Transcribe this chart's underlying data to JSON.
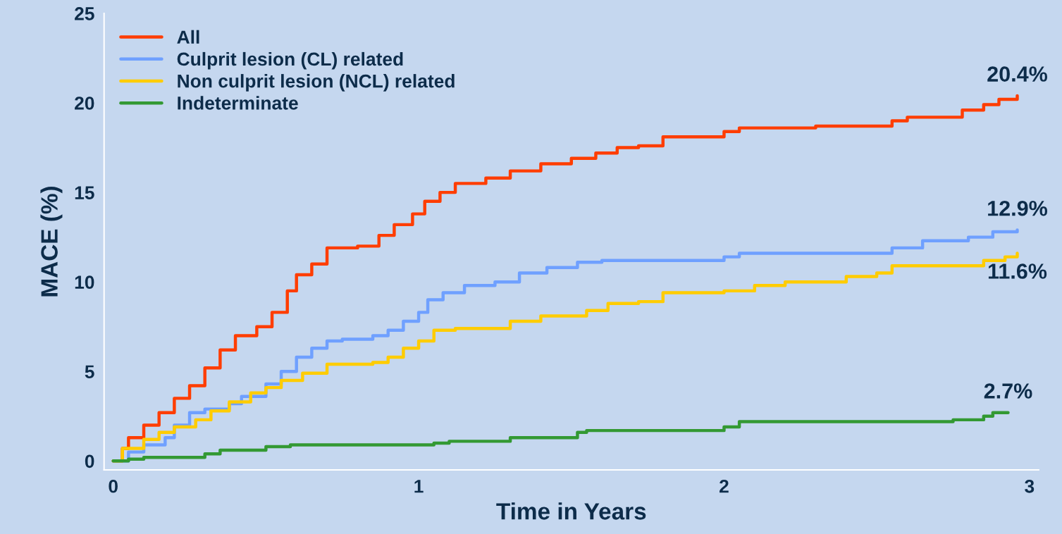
{
  "chart_data": {
    "type": "step",
    "xlabel": "Time in Years",
    "ylabel": "MACE (%)",
    "xlim": [
      -0.03,
      3.03
    ],
    "ylim": [
      -0.5,
      25
    ],
    "xticks": [
      0,
      1,
      2,
      3
    ],
    "yticks": [
      0,
      5,
      10,
      15,
      20,
      25
    ],
    "grid": false,
    "legend": "top left",
    "series": [
      {
        "name": "All",
        "color": "#ff3d00",
        "x": [
          0,
          0.03,
          0.05,
          0.1,
          0.15,
          0.2,
          0.25,
          0.3,
          0.35,
          0.4,
          0.47,
          0.52,
          0.57,
          0.6,
          0.65,
          0.7,
          0.8,
          0.87,
          0.92,
          0.98,
          1.02,
          1.07,
          1.12,
          1.22,
          1.3,
          1.4,
          1.5,
          1.58,
          1.65,
          1.72,
          1.8,
          2.0,
          2.05,
          2.3,
          2.55,
          2.6,
          2.78,
          2.85,
          2.9,
          2.96
        ],
        "values": [
          0,
          0.7,
          1.3,
          2.0,
          2.7,
          3.5,
          4.2,
          5.2,
          6.2,
          7.0,
          7.5,
          8.3,
          9.5,
          10.4,
          11.0,
          11.9,
          12.0,
          12.6,
          13.2,
          13.8,
          14.5,
          15.0,
          15.5,
          15.8,
          16.2,
          16.6,
          16.9,
          17.2,
          17.5,
          17.6,
          18.1,
          18.4,
          18.6,
          18.7,
          19.0,
          19.2,
          19.6,
          19.9,
          20.2,
          20.4
        ]
      },
      {
        "name": "Culprit lesion (CL) related",
        "color": "#6fa0ff",
        "x": [
          0,
          0.05,
          0.1,
          0.17,
          0.2,
          0.25,
          0.3,
          0.38,
          0.42,
          0.5,
          0.55,
          0.6,
          0.65,
          0.7,
          0.75,
          0.85,
          0.9,
          0.95,
          1.0,
          1.03,
          1.08,
          1.15,
          1.25,
          1.33,
          1.42,
          1.52,
          1.6,
          2.0,
          2.05,
          2.55,
          2.65,
          2.8,
          2.88,
          2.96
        ],
        "values": [
          0,
          0.5,
          0.9,
          1.3,
          2.0,
          2.7,
          2.9,
          3.2,
          3.6,
          4.3,
          5.0,
          5.8,
          6.3,
          6.7,
          6.8,
          7.0,
          7.3,
          7.8,
          8.3,
          9.0,
          9.4,
          9.8,
          10.0,
          10.5,
          10.8,
          11.1,
          11.2,
          11.4,
          11.6,
          11.9,
          12.3,
          12.5,
          12.8,
          12.9
        ]
      },
      {
        "name": "Non culprit lesion (NCL) related",
        "color": "#ffcc00",
        "x": [
          0,
          0.03,
          0.1,
          0.15,
          0.2,
          0.27,
          0.32,
          0.38,
          0.45,
          0.5,
          0.55,
          0.62,
          0.7,
          0.85,
          0.9,
          0.95,
          1.0,
          1.05,
          1.12,
          1.3,
          1.4,
          1.55,
          1.62,
          1.72,
          1.8,
          2.0,
          2.1,
          2.2,
          2.4,
          2.5,
          2.55,
          2.85,
          2.92,
          2.96
        ],
        "values": [
          0,
          0.7,
          1.2,
          1.6,
          1.9,
          2.3,
          2.8,
          3.3,
          3.8,
          4.1,
          4.5,
          4.9,
          5.4,
          5.5,
          5.8,
          6.3,
          6.7,
          7.3,
          7.4,
          7.8,
          8.1,
          8.4,
          8.8,
          8.9,
          9.4,
          9.5,
          9.8,
          10.0,
          10.3,
          10.5,
          10.9,
          11.2,
          11.4,
          11.6
        ]
      },
      {
        "name": "Indeterminate",
        "color": "#339933",
        "x": [
          0,
          0.05,
          0.1,
          0.3,
          0.35,
          0.5,
          0.58,
          1.05,
          1.1,
          1.3,
          1.52,
          1.55,
          2.0,
          2.05,
          2.75,
          2.85,
          2.88,
          2.93
        ],
        "values": [
          0,
          0.1,
          0.2,
          0.4,
          0.6,
          0.8,
          0.9,
          1.0,
          1.1,
          1.3,
          1.6,
          1.7,
          1.9,
          2.2,
          2.3,
          2.5,
          2.7,
          2.7
        ]
      }
    ],
    "annotations": [
      "20.4%",
      "12.9%",
      "11.6%",
      "2.7%"
    ]
  }
}
